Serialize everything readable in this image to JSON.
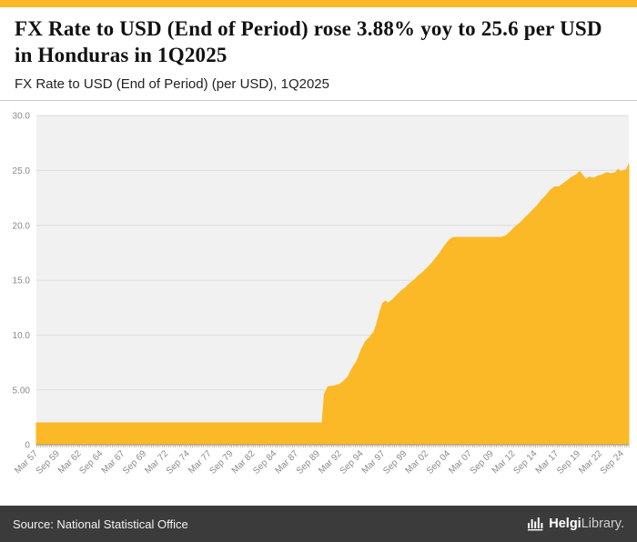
{
  "header": {
    "title": "FX Rate to USD (End of Period) rose 3.88% yoy to 25.6 per USD in Honduras in 1Q2025",
    "subtitle": "FX Rate to USD (End of Period) (per USD), 1Q2025"
  },
  "footer": {
    "source": "Source: National Statistical Office",
    "logo_bold": "Helgi",
    "logo_light": "Library."
  },
  "colors": {
    "accent_yellow": "#FBB928",
    "footer_bg": "#3B3B3B",
    "axis_label": "#8a8a8a"
  },
  "chart_data": {
    "type": "area",
    "title": "FX Rate to USD (End of Period) (per USD), 1Q2025",
    "country": "Honduras",
    "latest_period": "1Q2025",
    "latest_value": 25.6,
    "yoy_change_pct": 3.88,
    "x_domain": [
      1957.0,
      2025.25
    ],
    "ylim": [
      0,
      30
    ],
    "grid": true,
    "legend": "none",
    "plot_bg": "#f1f1f1",
    "grid_color": "#dddddd",
    "area_color": "#FBB928",
    "axis_color": "#999999",
    "y_ticks": [
      {
        "value": 0,
        "label": "0"
      },
      {
        "value": 5,
        "label": "5.00"
      },
      {
        "value": 10,
        "label": "10.0"
      },
      {
        "value": 15,
        "label": "15.0"
      },
      {
        "value": 20,
        "label": "20.0"
      },
      {
        "value": 25,
        "label": "25.0"
      },
      {
        "value": 30,
        "label": "30.0"
      }
    ],
    "x_ticks": [
      {
        "pos": 1957.2,
        "label": "Mar 57"
      },
      {
        "pos": 1959.7,
        "label": "Sep 59"
      },
      {
        "pos": 1962.2,
        "label": "Mar 62"
      },
      {
        "pos": 1964.7,
        "label": "Sep 64"
      },
      {
        "pos": 1967.2,
        "label": "Mar 67"
      },
      {
        "pos": 1969.7,
        "label": "Sep 69"
      },
      {
        "pos": 1972.2,
        "label": "Mar 72"
      },
      {
        "pos": 1974.7,
        "label": "Sep 74"
      },
      {
        "pos": 1977.2,
        "label": "Mar 77"
      },
      {
        "pos": 1979.7,
        "label": "Sep 79"
      },
      {
        "pos": 1982.2,
        "label": "Mar 82"
      },
      {
        "pos": 1984.7,
        "label": "Sep 84"
      },
      {
        "pos": 1987.2,
        "label": "Mar 87"
      },
      {
        "pos": 1989.7,
        "label": "Sep 89"
      },
      {
        "pos": 1992.2,
        "label": "Mar 92"
      },
      {
        "pos": 1994.7,
        "label": "Sep 94"
      },
      {
        "pos": 1997.2,
        "label": "Mar 97"
      },
      {
        "pos": 1999.7,
        "label": "Sep 99"
      },
      {
        "pos": 2002.2,
        "label": "Mar 02"
      },
      {
        "pos": 2004.7,
        "label": "Sep 04"
      },
      {
        "pos": 2007.2,
        "label": "Mar 07"
      },
      {
        "pos": 2009.7,
        "label": "Sep 09"
      },
      {
        "pos": 2012.2,
        "label": "Mar 12"
      },
      {
        "pos": 2014.7,
        "label": "Sep 14"
      },
      {
        "pos": 2017.2,
        "label": "Mar 17"
      },
      {
        "pos": 2019.7,
        "label": "Sep 19"
      },
      {
        "pos": 2022.2,
        "label": "Mar 22"
      },
      {
        "pos": 2024.7,
        "label": "Sep 24"
      }
    ],
    "series": [
      {
        "name": "FX Rate to USD (End of Period)",
        "points": [
          [
            1957.0,
            2.0
          ],
          [
            1975.0,
            2.0
          ],
          [
            1989.92,
            2.0
          ],
          [
            1990.17,
            4.6
          ],
          [
            1990.6,
            5.3
          ],
          [
            1991.2,
            5.35
          ],
          [
            1991.9,
            5.5
          ],
          [
            1992.4,
            5.8
          ],
          [
            1992.9,
            6.2
          ],
          [
            1993.4,
            7.0
          ],
          [
            1993.9,
            7.6
          ],
          [
            1994.4,
            8.6
          ],
          [
            1994.9,
            9.4
          ],
          [
            1995.4,
            9.8
          ],
          [
            1995.9,
            10.3
          ],
          [
            1996.2,
            11.0
          ],
          [
            1996.6,
            12.2
          ],
          [
            1996.9,
            12.9
          ],
          [
            1997.2,
            13.1
          ],
          [
            1997.5,
            12.9
          ],
          [
            1998.0,
            13.2
          ],
          [
            1998.5,
            13.6
          ],
          [
            1999.0,
            14.0
          ],
          [
            1999.5,
            14.3
          ],
          [
            2000.0,
            14.7
          ],
          [
            2000.5,
            15.0
          ],
          [
            2001.0,
            15.4
          ],
          [
            2001.5,
            15.7
          ],
          [
            2002.0,
            16.1
          ],
          [
            2002.5,
            16.5
          ],
          [
            2003.0,
            17.0
          ],
          [
            2003.5,
            17.5
          ],
          [
            2004.0,
            18.1
          ],
          [
            2004.5,
            18.6
          ],
          [
            2005.0,
            18.9
          ],
          [
            2010.6,
            18.9
          ],
          [
            2011.2,
            19.1
          ],
          [
            2011.7,
            19.5
          ],
          [
            2012.2,
            19.9
          ],
          [
            2012.7,
            20.2
          ],
          [
            2013.2,
            20.6
          ],
          [
            2013.7,
            21.0
          ],
          [
            2014.2,
            21.4
          ],
          [
            2014.7,
            21.8
          ],
          [
            2015.2,
            22.3
          ],
          [
            2015.7,
            22.7
          ],
          [
            2016.2,
            23.2
          ],
          [
            2016.7,
            23.5
          ],
          [
            2017.2,
            23.5
          ],
          [
            2017.7,
            23.8
          ],
          [
            2018.2,
            24.1
          ],
          [
            2018.7,
            24.4
          ],
          [
            2019.2,
            24.6
          ],
          [
            2019.6,
            24.9
          ],
          [
            2019.9,
            24.6
          ],
          [
            2020.3,
            24.2
          ],
          [
            2020.7,
            24.4
          ],
          [
            2021.2,
            24.3
          ],
          [
            2021.7,
            24.5
          ],
          [
            2022.2,
            24.6
          ],
          [
            2022.7,
            24.8
          ],
          [
            2023.2,
            24.7
          ],
          [
            2023.7,
            24.8
          ],
          [
            2024.0,
            25.1
          ],
          [
            2024.3,
            24.9
          ],
          [
            2024.7,
            25.0
          ],
          [
            2025.0,
            25.1
          ],
          [
            2025.25,
            25.6
          ]
        ]
      }
    ]
  }
}
